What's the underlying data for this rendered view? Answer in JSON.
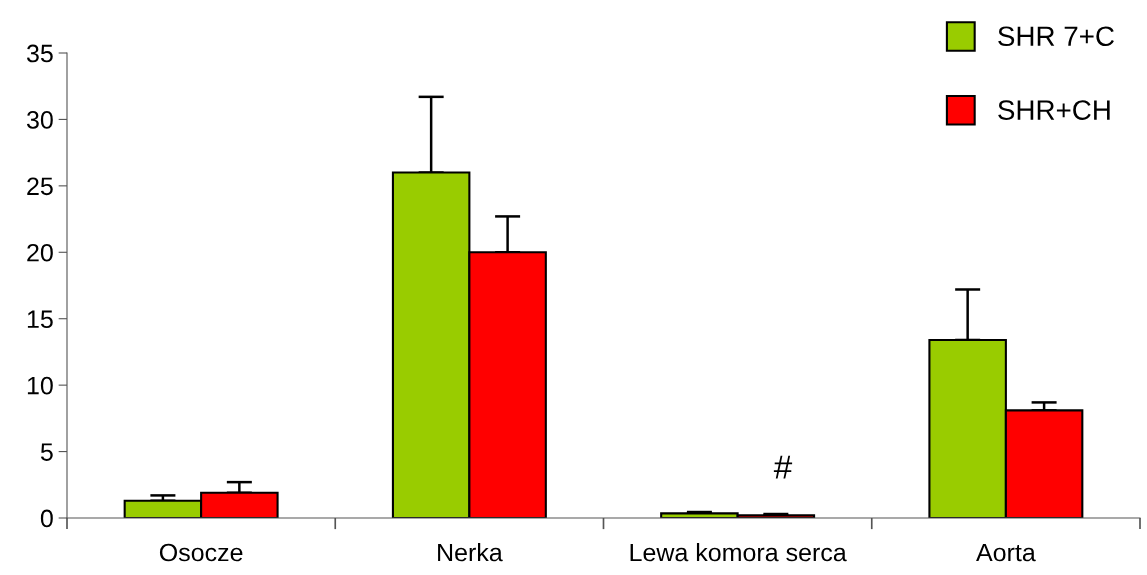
{
  "chart_data": {
    "type": "bar",
    "categories": [
      "Osocze",
      "Nerka",
      "Lewa komora serca",
      "Aorta"
    ],
    "series": [
      {
        "name": "SHR 7+C",
        "color": "#99cc00",
        "values": [
          1.3,
          26.0,
          0.35,
          13.4
        ],
        "errors": [
          [
            1.3,
            1.7
          ],
          [
            26.0,
            31.7
          ],
          [
            0.35,
            0.45
          ],
          [
            13.4,
            17.2
          ]
        ]
      },
      {
        "name": "SHR+CH",
        "color": "#ff0000",
        "values": [
          1.9,
          20.0,
          0.2,
          8.1
        ],
        "errors": [
          [
            1.9,
            2.7
          ],
          [
            20.0,
            22.7
          ],
          [
            0.2,
            0.3
          ],
          [
            8.1,
            8.7
          ]
        ]
      }
    ],
    "ylim": [
      0,
      35
    ],
    "yticks": [
      0,
      5,
      10,
      15,
      20,
      25,
      30,
      35
    ],
    "grid": false,
    "legend": "top right",
    "annotations": [
      "#"
    ]
  }
}
